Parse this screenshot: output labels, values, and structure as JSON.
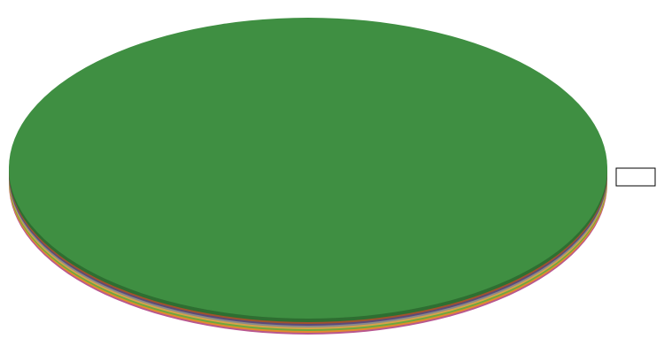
{
  "chart_data": {
    "type": "pie",
    "values": [
      100
    ],
    "colors": [
      "#3f8f42"
    ]
  }
}
